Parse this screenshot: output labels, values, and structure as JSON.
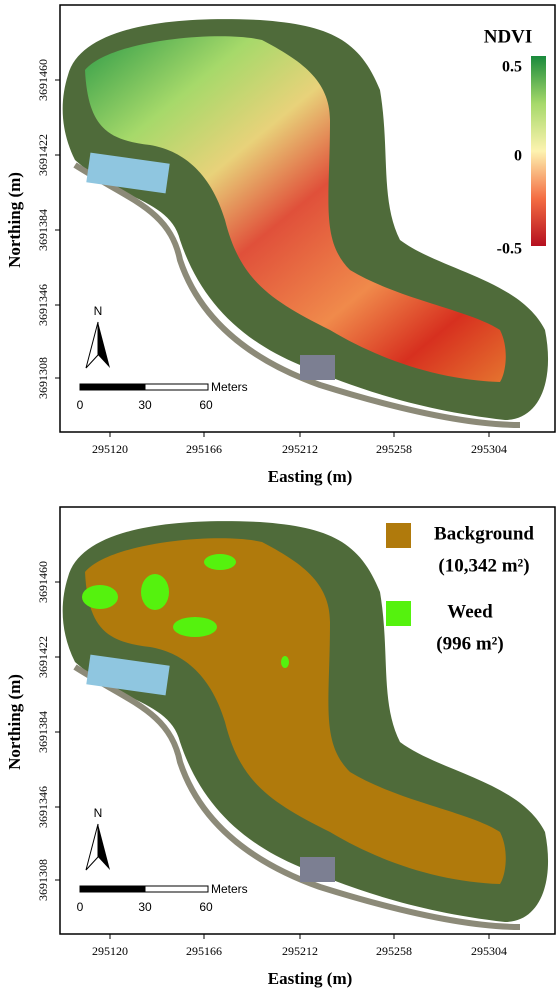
{
  "panels": [
    {
      "y_label": "Northing (m)",
      "x_label": "Easting (m)",
      "y_ticks": [
        "3691460",
        "3691422",
        "3691384",
        "3691346",
        "3691308"
      ],
      "x_ticks": [
        "295120",
        "295166",
        "295212",
        "295258",
        "295304"
      ],
      "north": "N",
      "scale": {
        "unit": "Meters",
        "labels": [
          "0",
          "30",
          "60"
        ]
      },
      "legend": {
        "title": "NDVI",
        "labels": [
          "0.5",
          "0",
          "-0.5"
        ]
      }
    },
    {
      "y_label": "Northing (m)",
      "x_label": "Easting (m)",
      "y_ticks": [
        "3691460",
        "3691422",
        "3691384",
        "3691346",
        "3691308"
      ],
      "x_ticks": [
        "295120",
        "295166",
        "295212",
        "295258",
        "295304"
      ],
      "north": "N",
      "scale": {
        "unit": "Meters",
        "labels": [
          "0",
          "30",
          "60"
        ]
      },
      "legend": {
        "items": [
          {
            "label": "Background",
            "area": "(10,342 m²)"
          },
          {
            "label": "Weed",
            "area": "(996 m²)"
          }
        ]
      }
    }
  ]
}
